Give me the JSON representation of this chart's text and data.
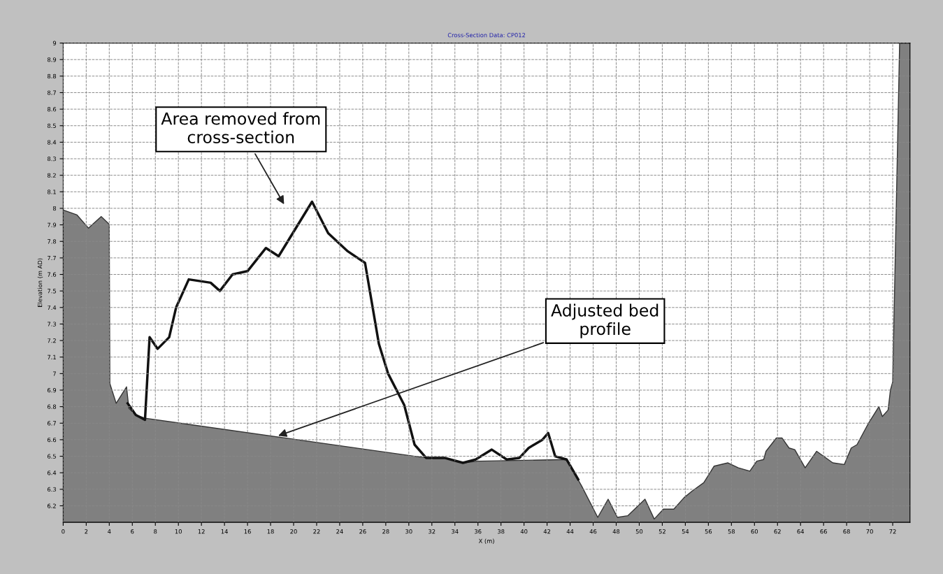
{
  "chart_data": {
    "type": "area",
    "title": "Cross-Section Data: CP012",
    "xlabel": "X (m)",
    "ylabel": "Elevation (m AD)",
    "xlim": [
      0,
      73.5
    ],
    "ylim": [
      6.1,
      9
    ],
    "xticks": [
      0,
      2,
      4,
      6,
      8,
      10,
      12,
      14,
      16,
      18,
      20,
      22,
      24,
      26,
      28,
      30,
      32,
      34,
      36,
      38,
      40,
      42,
      44,
      46,
      48,
      50,
      52,
      54,
      56,
      58,
      60,
      62,
      64,
      66,
      68,
      70,
      72
    ],
    "yticks": [
      6.2,
      6.3,
      6.4,
      6.5,
      6.6,
      6.7,
      6.8,
      6.9,
      7,
      7.1,
      7.2,
      7.3,
      7.4,
      7.5,
      7.6,
      7.7,
      7.8,
      7.9,
      8,
      8.1,
      8.2,
      8.3,
      8.4,
      8.5,
      8.6,
      8.7,
      8.8,
      8.9,
      9
    ],
    "grid": true,
    "series": [
      {
        "color": "#808080",
        "x": [
          0,
          1.2,
          2.2,
          3.3,
          3.9,
          4.0,
          4.05,
          4.6,
          5.5,
          5.7,
          6.3,
          7.1,
          31.5,
          33.1,
          34.7,
          36,
          43.7,
          45.0,
          46.4,
          47.3,
          48.1,
          49.0,
          50.5,
          51.3,
          52.1,
          53.0,
          53.9,
          54.6,
          55.6,
          56.5,
          57.7,
          58.6,
          59.6,
          60.2,
          60.8,
          61.0,
          61.9,
          62.4,
          63.0,
          63.5,
          64.4,
          65.4,
          66.8,
          67.8,
          68.4,
          68.9,
          69.9,
          70.8,
          71.1,
          71.6,
          71.8,
          72.0,
          72.6,
          73.5
        ],
        "values": [
          7.99,
          7.96,
          7.88,
          7.95,
          7.91,
          7.9,
          6.94,
          6.82,
          6.92,
          6.79,
          6.75,
          6.73,
          6.49,
          6.49,
          6.46,
          6.47,
          6.48,
          6.32,
          6.13,
          6.24,
          6.13,
          6.14,
          6.24,
          6.12,
          6.18,
          6.18,
          6.25,
          6.29,
          6.34,
          6.44,
          6.46,
          6.43,
          6.41,
          6.47,
          6.48,
          6.53,
          6.61,
          6.61,
          6.55,
          6.54,
          6.43,
          6.53,
          6.46,
          6.45,
          6.55,
          6.57,
          6.7,
          6.8,
          6.74,
          6.78,
          6.9,
          6.95,
          9,
          9
        ]
      },
      {
        "type": "line",
        "color": "#111111",
        "x": [
          5.6,
          6.3,
          7.1,
          7.3,
          7.5,
          8.2,
          9.2,
          9.8,
          10.9,
          12.8,
          13.6,
          14.7,
          16.0,
          17.6,
          18.7,
          21.6,
          23.0,
          24.7,
          26.2,
          27.4,
          28.2,
          29.6,
          30.5,
          31.5,
          33.1,
          34.7,
          35.8,
          37.2,
          38.5,
          39.6,
          40.4,
          41.6,
          42.1,
          42.7,
          43.7,
          44.7
        ],
        "values": [
          6.82,
          6.75,
          6.72,
          6.97,
          7.22,
          7.15,
          7.22,
          7.4,
          7.57,
          7.55,
          7.5,
          7.6,
          7.62,
          7.76,
          7.71,
          8.04,
          7.85,
          7.74,
          7.67,
          7.18,
          7.0,
          6.81,
          6.57,
          6.49,
          6.49,
          6.46,
          6.48,
          6.54,
          6.48,
          6.49,
          6.55,
          6.6,
          6.64,
          6.5,
          6.48,
          6.36
        ]
      }
    ],
    "annotations": [
      "Area removed from\ncross-section",
      {
        "text": "Adjusted bed\nprofile",
        "x": 18.5,
        "y": 6.62
      }
    ]
  }
}
